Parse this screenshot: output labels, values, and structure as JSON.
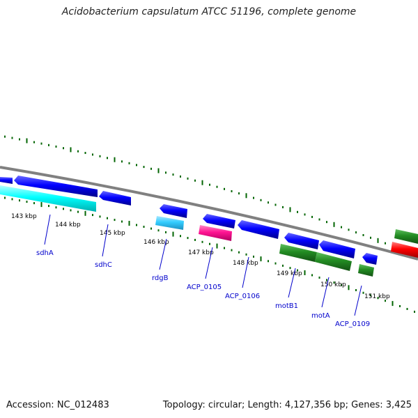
{
  "title": "Acidobacterium capsulatum ATCC 51196, complete genome",
  "footer": {
    "accession": "Accession: NC_012483",
    "summary": "Topology: circular; Length: 4,127,356 bp; Genes: 3,425"
  },
  "scale": {
    "ticks": [
      {
        "label": "143 kbp"
      },
      {
        "label": "144 kbp"
      },
      {
        "label": "145 kbp"
      },
      {
        "label": "146 kbp"
      },
      {
        "label": "147 kbp"
      },
      {
        "label": "148 kbp"
      },
      {
        "label": "149 kbp"
      },
      {
        "label": "150 kbp"
      },
      {
        "label": "151 kbp"
      }
    ]
  },
  "genes": [
    {
      "name": "sdhA",
      "color": "#00ffff",
      "strand": "forward"
    },
    {
      "name": "sdhC",
      "color": "#0000ff",
      "strand": "reverse"
    },
    {
      "name": "rdgB",
      "color": "#33ccff",
      "strand": "forward"
    },
    {
      "name": "ACP_0105",
      "color": "#ff1493",
      "strand": "forward"
    },
    {
      "name": "ACP_0106",
      "color": "#0000ff",
      "strand": "reverse"
    },
    {
      "name": "motB1",
      "color": "#228b22",
      "strand": "forward"
    },
    {
      "name": "motA",
      "color": "#228b22",
      "strand": "forward"
    },
    {
      "name": "ACP_0109",
      "color": "#228b22",
      "strand": "forward"
    }
  ],
  "colors": {
    "backbone": "#808080",
    "gc_ticks": "#006400",
    "label_text": "#0000cc"
  }
}
